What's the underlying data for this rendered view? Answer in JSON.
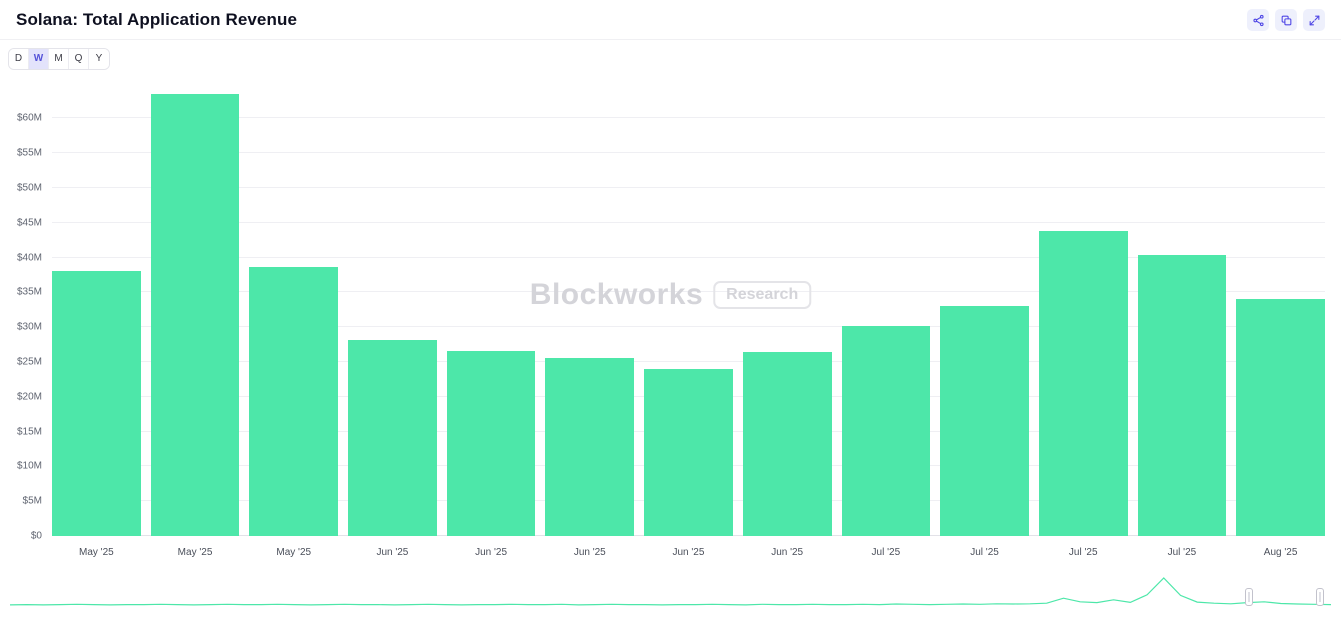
{
  "header": {
    "title": "Solana: Total Application Revenue",
    "icons": [
      "share-icon",
      "copy-icon",
      "expand-icon"
    ]
  },
  "time_selector": {
    "options": [
      "D",
      "W",
      "M",
      "Q",
      "Y"
    ],
    "selected": "W"
  },
  "chart_data": {
    "type": "bar",
    "title": "Solana: Total Application Revenue",
    "xlabel": "",
    "ylabel": "",
    "unit": "USD millions",
    "categories": [
      "May '25",
      "May '25",
      "May '25",
      "Jun '25",
      "Jun '25",
      "Jun '25",
      "Jun '25",
      "Jun '25",
      "Jul '25",
      "Jul '25",
      "Jul '25",
      "Jul '25",
      "Aug '25"
    ],
    "values": [
      38,
      63.5,
      38.7,
      28.2,
      26.6,
      25.6,
      24,
      26.4,
      30.1,
      33,
      43.8,
      40.3,
      34
    ],
    "ylim": [
      0,
      65.5
    ],
    "yticks": [
      0,
      5,
      10,
      15,
      20,
      25,
      30,
      35,
      40,
      45,
      50,
      55,
      60
    ],
    "ytick_labels": [
      "$0",
      "$5M",
      "$10M",
      "$15M",
      "$20M",
      "$25M",
      "$30M",
      "$35M",
      "$40M",
      "$45M",
      "$50M",
      "$55M",
      "$60M"
    ],
    "grid": true,
    "legend": false,
    "bar_color": "#4de7a9",
    "watermark": {
      "brand": "Blockworks",
      "tag": "Research"
    }
  },
  "navigator": {
    "line_color": "#4de7a9",
    "handles_percent": [
      93.8,
      99.2
    ],
    "points": [
      0.04,
      0.05,
      0.04,
      0.05,
      0.06,
      0.05,
      0.04,
      0.05,
      0.05,
      0.06,
      0.05,
      0.04,
      0.05,
      0.06,
      0.05,
      0.05,
      0.06,
      0.05,
      0.04,
      0.05,
      0.06,
      0.05,
      0.05,
      0.04,
      0.05,
      0.06,
      0.05,
      0.04,
      0.05,
      0.05,
      0.06,
      0.05,
      0.05,
      0.06,
      0.04,
      0.05,
      0.06,
      0.05,
      0.05,
      0.04,
      0.05,
      0.05,
      0.06,
      0.05,
      0.04,
      0.06,
      0.05,
      0.05,
      0.06,
      0.05,
      0.05,
      0.06,
      0.05,
      0.07,
      0.06,
      0.05,
      0.06,
      0.07,
      0.06,
      0.08,
      0.07,
      0.08,
      0.1,
      0.28,
      0.15,
      0.12,
      0.22,
      0.13,
      0.4,
      1.0,
      0.38,
      0.14,
      0.1,
      0.08,
      0.12,
      0.15,
      0.09,
      0.07,
      0.06,
      0.05
    ]
  },
  "colors": {
    "accent": "#4f46e5",
    "bar": "#4de7a9",
    "grid": "#efeff3",
    "title_text": "#0e1020"
  }
}
